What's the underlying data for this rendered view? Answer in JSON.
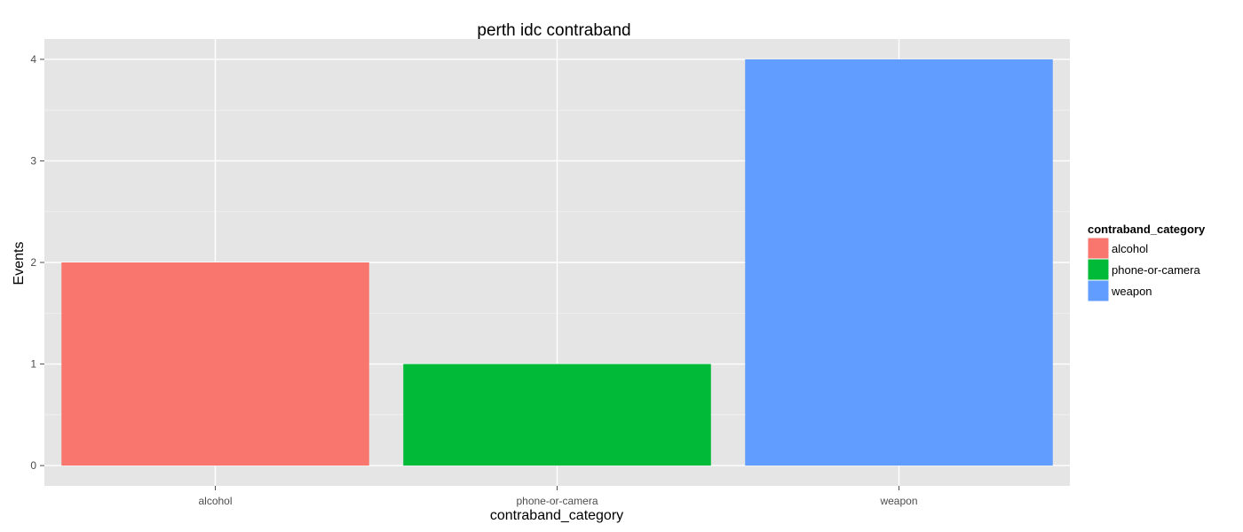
{
  "chart_data": {
    "type": "bar",
    "title": "perth idc contraband",
    "xlabel": "contraband_category",
    "ylabel": "Events",
    "categories": [
      "alcohol",
      "phone-or-camera",
      "weapon"
    ],
    "values": [
      2,
      1,
      4
    ],
    "colors": [
      "#F8766D",
      "#00BA38",
      "#619CFF"
    ],
    "ylim": [
      -0.2,
      4.2
    ],
    "yticks": [
      0,
      1,
      2,
      3,
      4
    ],
    "grid": true,
    "panel_background": "#E5E5E5",
    "legend": {
      "title": "contraband_category",
      "placement": "right",
      "items": [
        "alcohol",
        "phone-or-camera",
        "weapon"
      ]
    }
  }
}
